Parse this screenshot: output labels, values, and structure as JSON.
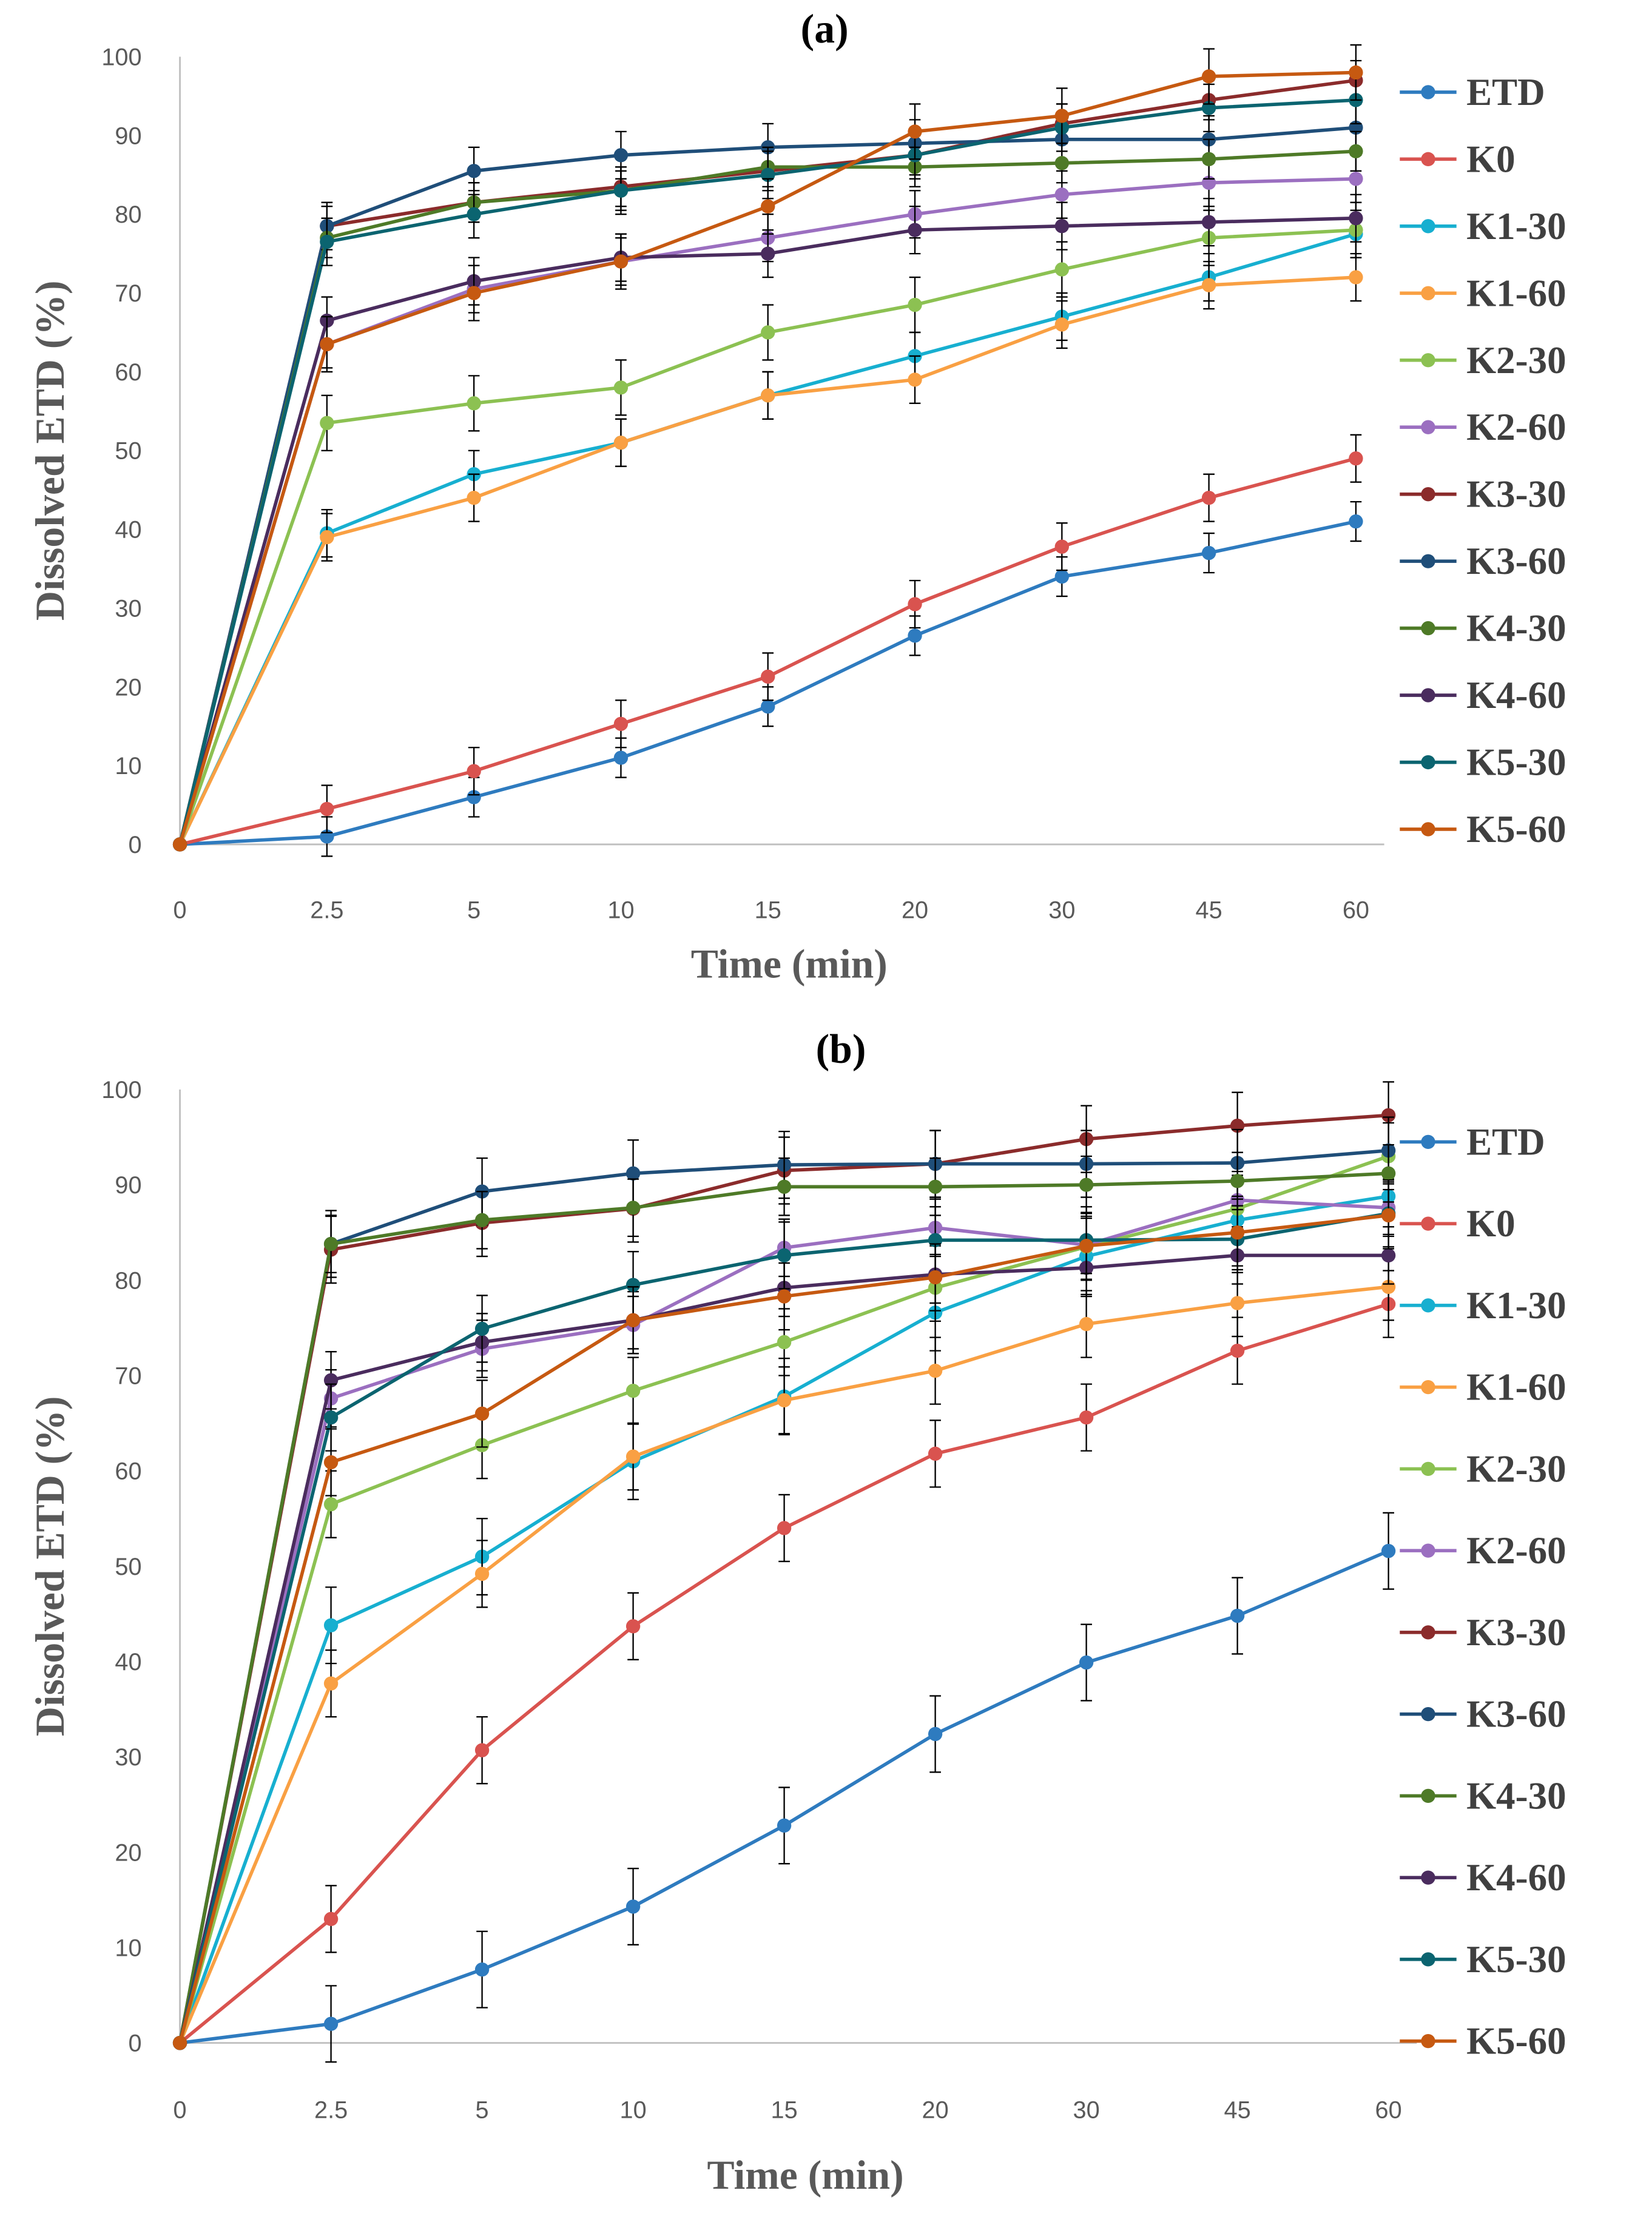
{
  "chart_data": [
    {
      "type": "line",
      "title": "(a)",
      "xlabel": "Time (min)",
      "ylabel": "Dissolved ETD (%)",
      "categories": [
        "0",
        "2.5",
        "5",
        "10",
        "15",
        "20",
        "30",
        "45",
        "60"
      ],
      "ylim": [
        0,
        100
      ],
      "yticks": [
        "0",
        "10",
        "20",
        "30",
        "40",
        "50",
        "60",
        "70",
        "80",
        "90",
        "100"
      ],
      "grid": false,
      "legend": "right",
      "series": [
        {
          "name": "ETD",
          "color": "#2e7bbf",
          "error": 2.5,
          "values": [
            0,
            1,
            6,
            11,
            17.5,
            26.5,
            34,
            37,
            41
          ]
        },
        {
          "name": "K0",
          "color": "#d9534f",
          "error": 3,
          "values": [
            0,
            4.5,
            9.3,
            15.3,
            21.3,
            30.5,
            37.8,
            44,
            49
          ]
        },
        {
          "name": "K1-30",
          "color": "#17afd0",
          "error": 3,
          "values": [
            0,
            39.5,
            47,
            51,
            57,
            62,
            67,
            72,
            77.5
          ]
        },
        {
          "name": "K1-60",
          "color": "#f9a043",
          "error": 3,
          "values": [
            0,
            39,
            44,
            51,
            57,
            59,
            66,
            71,
            72
          ]
        },
        {
          "name": "K2-30",
          "color": "#8cc152",
          "error": 3.5,
          "values": [
            0,
            53.5,
            56,
            58,
            65,
            68.5,
            73,
            77,
            78
          ]
        },
        {
          "name": "K2-60",
          "color": "#9b6fc0",
          "error": 3,
          "values": [
            0,
            63.5,
            70.5,
            74,
            77,
            80,
            82.5,
            84,
            84.5
          ]
        },
        {
          "name": "K3-30",
          "color": "#8b2b2b",
          "error": 2.5,
          "values": [
            0,
            78.5,
            81.5,
            83.5,
            85.5,
            87.5,
            91.5,
            94.5,
            97
          ]
        },
        {
          "name": "K3-60",
          "color": "#1f4e79",
          "error": 3,
          "values": [
            0,
            78.5,
            85.5,
            87.5,
            88.5,
            89,
            89.5,
            89.5,
            91
          ]
        },
        {
          "name": "K4-30",
          "color": "#4e7a27",
          "error": 2.5,
          "values": [
            0,
            77,
            81.5,
            83,
            86,
            86,
            86.5,
            87,
            88
          ]
        },
        {
          "name": "K4-60",
          "color": "#4a2c5e",
          "error": 3,
          "values": [
            0,
            66.5,
            71.5,
            74.5,
            75,
            78,
            78.5,
            79,
            79.5
          ]
        },
        {
          "name": "K5-30",
          "color": "#0b6470",
          "error": 3,
          "values": [
            0,
            76.5,
            80,
            83,
            85,
            87.5,
            91,
            93.5,
            94.5
          ]
        },
        {
          "name": "K5-60",
          "color": "#c65911",
          "error": 3.5,
          "values": [
            0,
            63.5,
            70,
            74,
            81,
            90.5,
            92.5,
            97.5,
            98
          ]
        }
      ]
    },
    {
      "type": "line",
      "title": "(b)",
      "xlabel": "Time (min)",
      "ylabel": "Dissolved ETD (%)",
      "categories": [
        "0",
        "2.5",
        "5",
        "10",
        "15",
        "20",
        "30",
        "45",
        "60"
      ],
      "ylim": [
        0,
        100
      ],
      "yticks": [
        "0",
        "10",
        "20",
        "30",
        "40",
        "50",
        "60",
        "70",
        "80",
        "90",
        "100"
      ],
      "grid": false,
      "legend": "right",
      "series": [
        {
          "name": "ETD",
          "color": "#2e7bbf",
          "error": 4,
          "values": [
            0,
            2,
            7.7,
            14.3,
            22.8,
            32.4,
            39.9,
            44.8,
            51.6
          ]
        },
        {
          "name": "K0",
          "color": "#d9534f",
          "error": 3.5,
          "values": [
            0,
            13,
            30.7,
            43.7,
            54,
            61.8,
            65.6,
            72.6,
            77.5
          ]
        },
        {
          "name": "K1-30",
          "color": "#17afd0",
          "error": 4,
          "values": [
            0,
            43.8,
            51,
            61,
            67.8,
            76.6,
            82.5,
            86.3,
            88.8
          ]
        },
        {
          "name": "K1-60",
          "color": "#f9a043",
          "error": 3.5,
          "values": [
            0,
            37.7,
            49.2,
            61.5,
            67.4,
            70.5,
            75.4,
            77.6,
            79.3
          ]
        },
        {
          "name": "K2-30",
          "color": "#8cc152",
          "error": 3.5,
          "values": [
            0,
            56.5,
            62.7,
            68.4,
            73.5,
            79.2,
            83.5,
            87.5,
            93
          ]
        },
        {
          "name": "K2-60",
          "color": "#9b6fc0",
          "error": 3,
          "values": [
            0,
            67.6,
            72.8,
            75.3,
            83.4,
            85.5,
            83.7,
            88.4,
            87.6
          ]
        },
        {
          "name": "K3-30",
          "color": "#8b2b2b",
          "error": 3.5,
          "values": [
            0,
            83.2,
            86,
            87.5,
            91.5,
            92.2,
            94.8,
            96.2,
            97.3
          ]
        },
        {
          "name": "K3-60",
          "color": "#1f4e79",
          "error": 3.5,
          "values": [
            0,
            83.8,
            89.3,
            91.2,
            92.1,
            92.2,
            92.2,
            92.3,
            93.6
          ]
        },
        {
          "name": "K4-30",
          "color": "#4e7a27",
          "error": 3,
          "values": [
            0,
            83.8,
            86.3,
            87.6,
            89.8,
            89.8,
            90,
            90.4,
            91.2
          ]
        },
        {
          "name": "K4-60",
          "color": "#4a2c5e",
          "error": 3,
          "values": [
            0,
            69.5,
            73.5,
            75.8,
            79.2,
            80.6,
            81.3,
            82.6,
            82.6
          ]
        },
        {
          "name": "K5-30",
          "color": "#0b6470",
          "error": 3.5,
          "values": [
            0,
            65.6,
            74.9,
            79.5,
            82.6,
            84.2,
            84.2,
            84.3,
            87
          ]
        },
        {
          "name": "K5-60",
          "color": "#c65911",
          "error": 3.5,
          "values": [
            0,
            60.9,
            66,
            75.8,
            78.3,
            80.3,
            83.6,
            85,
            86.8
          ]
        }
      ]
    }
  ]
}
